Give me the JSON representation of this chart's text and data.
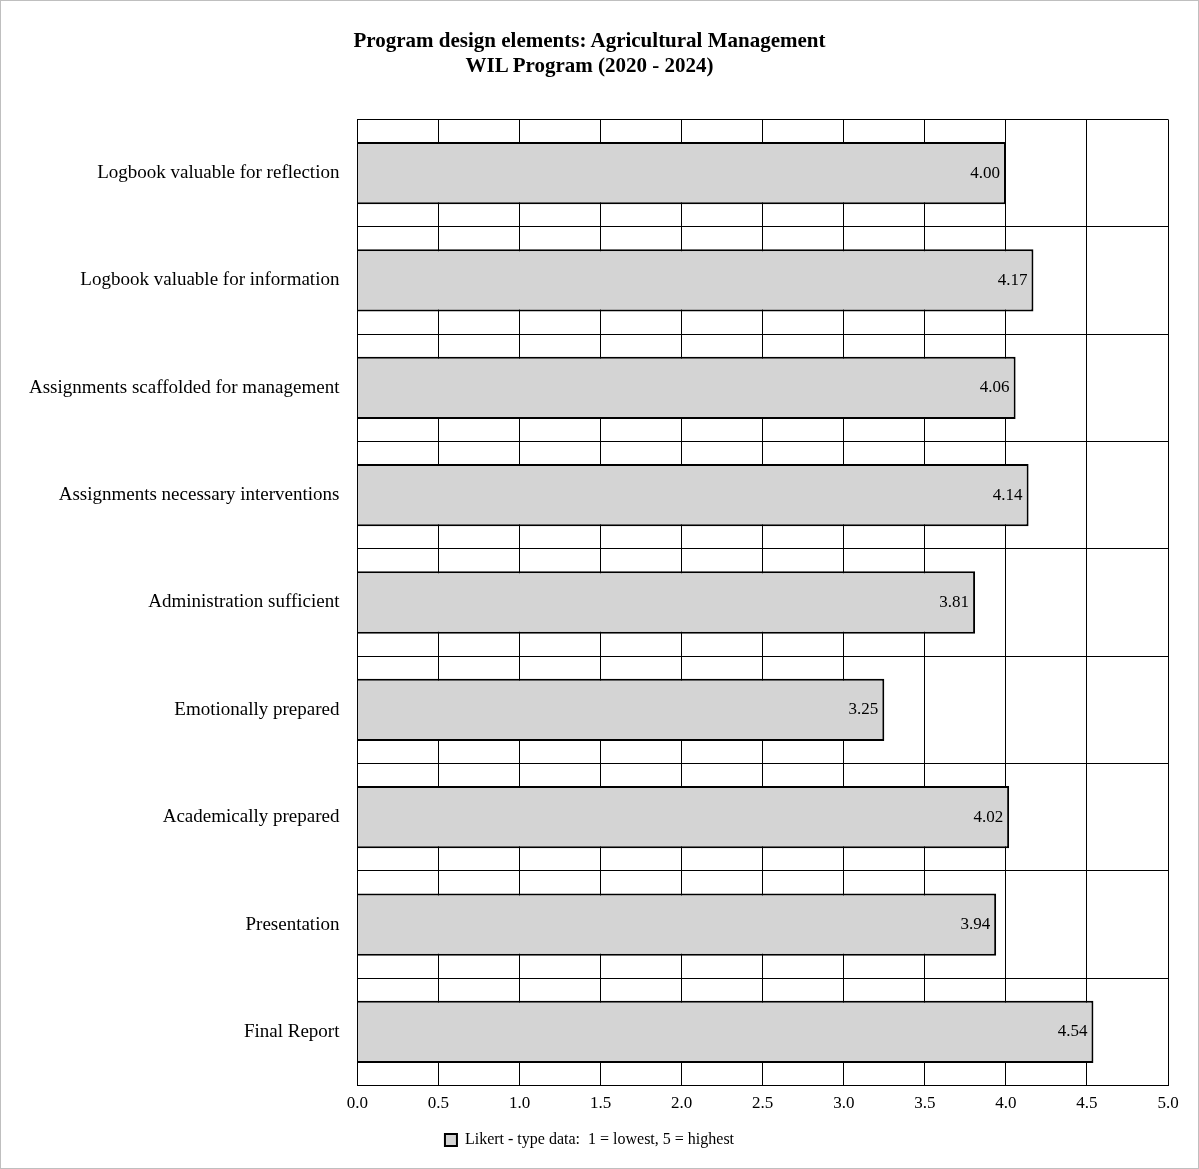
{
  "chart_data": {
    "type": "bar",
    "orientation": "horizontal",
    "title": "Program design elements: Agricultural Management\nWIL Program (2020 - 2024)",
    "categories": [
      "Logbook valuable for reflection",
      "Logbook valuable for information",
      "Assignments scaffolded for management",
      "Assignments necessary interventions",
      "Administration sufficient",
      "Emotionally prepared",
      "Academically prepared",
      "Presentation",
      "Final Report"
    ],
    "series": [
      {
        "name": "Likert - type data:  1 = lowest, 5 = highest",
        "color": "#d4d4d4",
        "values": [
          4.0,
          4.17,
          4.06,
          4.14,
          3.81,
          3.25,
          4.02,
          3.94,
          4.54
        ],
        "value_labels": [
          "4.00",
          "4.17",
          "4.06",
          "4.14",
          "3.81",
          "3.25",
          "4.02",
          "3.94",
          "4.54"
        ]
      }
    ],
    "xlim": [
      0,
      5
    ],
    "xticks": [
      {
        "value": 0,
        "label": "0.0"
      },
      {
        "value": 0.5,
        "label": "0.5"
      },
      {
        "value": 1,
        "label": "1.0"
      },
      {
        "value": 1.5,
        "label": "1.5"
      },
      {
        "value": 2,
        "label": "2.0"
      },
      {
        "value": 2.5,
        "label": "2.5"
      },
      {
        "value": 3,
        "label": "3.0"
      },
      {
        "value": 3.5,
        "label": "3.5"
      },
      {
        "value": 4,
        "label": "4.0"
      },
      {
        "value": 4.5,
        "label": "4.5"
      },
      {
        "value": 5,
        "label": "5.0"
      }
    ],
    "grid": true,
    "legend": "bottom"
  }
}
